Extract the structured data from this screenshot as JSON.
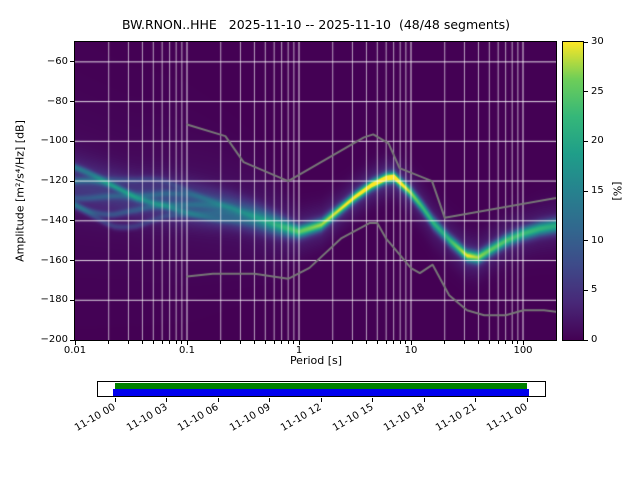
{
  "title": "BW.RNON..HHE   2025-11-10 -- 2025-11-10  (48/48 segments)",
  "axes": {
    "xlabel": "Period [s]",
    "ylabel": "Amplitude [m²/s⁴/Hz] [dB]",
    "x_ticks": [
      {
        "label": "0.01",
        "log_period": -2
      },
      {
        "label": "0.1",
        "log_period": -1
      },
      {
        "label": "1",
        "log_period": 0
      },
      {
        "label": "10",
        "log_period": 1
      },
      {
        "label": "100",
        "log_period": 2
      }
    ],
    "y_ticks": [
      {
        "label": "−60",
        "db": -60
      },
      {
        "label": "−80",
        "db": -80
      },
      {
        "label": "−100",
        "db": -100
      },
      {
        "label": "−120",
        "db": -120
      },
      {
        "label": "−140",
        "db": -140
      },
      {
        "label": "−160",
        "db": -160
      },
      {
        "label": "−180",
        "db": -180
      },
      {
        "label": "−200",
        "db": -200
      }
    ],
    "xlim_log_period": [
      -2,
      2.2945
    ],
    "ylim_db": [
      -200,
      -50
    ],
    "grid": true
  },
  "colorbar": {
    "label": "[%]",
    "vmin": 0,
    "vmax": 30,
    "ticks": [
      0,
      5,
      10,
      15,
      20,
      25,
      30
    ],
    "colormap": "viridis",
    "stops": [
      {
        "t": 0.0,
        "rgb": [
          68,
          1,
          84
        ]
      },
      {
        "t": 0.125,
        "rgb": [
          72,
          40,
          120
        ]
      },
      {
        "t": 0.25,
        "rgb": [
          62,
          74,
          137
        ]
      },
      {
        "t": 0.375,
        "rgb": [
          49,
          104,
          142
        ]
      },
      {
        "t": 0.5,
        "rgb": [
          38,
          130,
          142
        ]
      },
      {
        "t": 0.625,
        "rgb": [
          31,
          158,
          137
        ]
      },
      {
        "t": 0.75,
        "rgb": [
          53,
          183,
          121
        ]
      },
      {
        "t": 0.875,
        "rgb": [
          110,
          206,
          88
        ]
      },
      {
        "t": 1.0,
        "rgb": [
          253,
          231,
          37
        ]
      }
    ]
  },
  "chart_data": {
    "type": "heatmap",
    "description": "PPSD probabilistic power spectral density histogram; probability [%] of PSD value per period bin",
    "segments_used": "48/48",
    "background_percent": 0,
    "mode_curve": {
      "log_period": [
        -2.0,
        -1.7,
        -1.45,
        -1.2,
        -1.0,
        -0.8,
        -0.6,
        -0.4,
        -0.2,
        0.0,
        0.2,
        0.35,
        0.5,
        0.65,
        0.78,
        0.85,
        1.0,
        1.1,
        1.2,
        1.35,
        1.5,
        1.6,
        1.7,
        1.85,
        2.0,
        2.15,
        2.2945
      ],
      "db": [
        -121,
        -125,
        -128,
        -129,
        -131,
        -133,
        -135,
        -138,
        -142,
        -145.5,
        -142,
        -135,
        -128,
        -122,
        -118.5,
        -118,
        -126,
        -133,
        -141,
        -150,
        -157.5,
        -158.5,
        -155,
        -150,
        -146.5,
        -144,
        -142.5
      ]
    },
    "peak_percent": {
      "log_period": [
        -2.0,
        -1.5,
        -1.0,
        -0.5,
        -0.2,
        0.0,
        0.3,
        0.6,
        0.85,
        1.1,
        1.3,
        1.5,
        1.7,
        2.0,
        2.2945
      ],
      "percent": [
        5,
        5,
        7,
        10,
        16,
        22,
        25,
        28,
        30,
        20,
        18,
        26,
        22,
        20,
        18
      ]
    },
    "spread_db": {
      "log_period": [
        -2.0,
        -1.5,
        -1.0,
        -0.5,
        -0.2,
        0.0,
        0.4,
        0.85,
        1.2,
        1.5,
        2.0,
        2.2945
      ],
      "sigma": [
        9,
        8,
        7,
        5,
        3.5,
        2.2,
        1.8,
        1.8,
        2.2,
        2.0,
        2.2,
        2.5
      ]
    },
    "halo": {
      "amp_fraction": 0.15,
      "sigma_mult": 3.5
    },
    "streaks": {
      "base_offset_db": [
        -14,
        -9,
        -4.5,
        0,
        4.5,
        9
      ],
      "peak_percent": [
        5,
        6,
        5,
        7,
        6,
        4
      ],
      "sigma_db": 1.2,
      "wiggle_amp_db": 3.5,
      "wiggle_freq": 5.5,
      "phases": [
        0.8,
        2.1,
        3.6,
        5.0,
        0.1,
        1.9
      ],
      "fade_start_log_period": -0.05,
      "fade_range": 1.6
    },
    "noise_models": {
      "color": "#777777",
      "nhnm": [
        [
          0.1,
          -91.5
        ],
        [
          0.22,
          -97.4
        ],
        [
          0.32,
          -110.5
        ],
        [
          0.8,
          -120.0
        ],
        [
          3.8,
          -98.0
        ],
        [
          4.6,
          -96.5
        ],
        [
          6.3,
          -101.0
        ],
        [
          7.9,
          -113.5
        ],
        [
          15.4,
          -120.0
        ],
        [
          20.0,
          -138.5
        ],
        [
          354.8,
          -126.0
        ]
      ],
      "nlnm": [
        [
          0.1,
          -168.0
        ],
        [
          0.17,
          -166.7
        ],
        [
          0.4,
          -166.7
        ],
        [
          0.8,
          -169.2
        ],
        [
          1.24,
          -163.7
        ],
        [
          2.4,
          -148.7
        ],
        [
          4.3,
          -141.1
        ],
        [
          5.0,
          -141.1
        ],
        [
          6.0,
          -149.0
        ],
        [
          10.0,
          -163.8
        ],
        [
          12.0,
          -166.3
        ],
        [
          15.6,
          -162.1
        ],
        [
          21.9,
          -177.5
        ],
        [
          31.6,
          -185.0
        ],
        [
          45.0,
          -187.5
        ],
        [
          70.0,
          -187.5
        ],
        [
          101.0,
          -185.0
        ],
        [
          154.0,
          -185.0
        ],
        [
          328.0,
          -187.5
        ]
      ]
    }
  },
  "coverage": {
    "tick_labels": [
      "11-10 00",
      "11-10 03",
      "11-10 06",
      "11-10 09",
      "11-10 12",
      "11-10 15",
      "11-10 18",
      "11-10 21",
      "11-11 00"
    ],
    "colors": {
      "data": "#008000",
      "segments": "#0000ee"
    }
  }
}
